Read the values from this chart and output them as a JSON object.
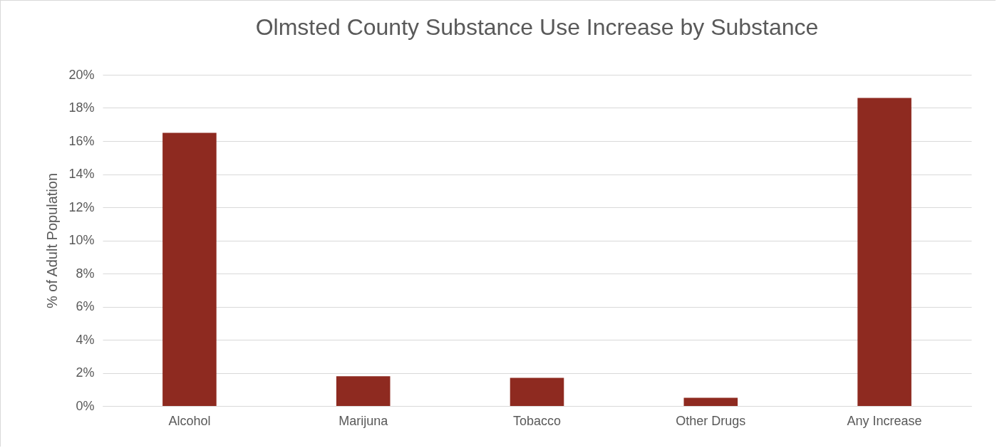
{
  "chart_data": {
    "type": "bar",
    "title": "Olmsted County Substance Use Increase by Substance",
    "ylabel": "% of Adult Population",
    "categories": [
      "Alcohol",
      "Marijuna",
      "Tobacco",
      "Other Drugs",
      "Any Increase"
    ],
    "values": [
      16.5,
      1.8,
      1.7,
      0.5,
      18.6
    ],
    "color": "#8e2a20",
    "ylim": [
      0,
      20
    ],
    "yticks": [
      {
        "value": 0,
        "label": "0%"
      },
      {
        "value": 2,
        "label": "2%"
      },
      {
        "value": 4,
        "label": "4%"
      },
      {
        "value": 6,
        "label": "6%"
      },
      {
        "value": 8,
        "label": "8%"
      },
      {
        "value": 10,
        "label": "10%"
      },
      {
        "value": 12,
        "label": "12%"
      },
      {
        "value": 14,
        "label": "14%"
      },
      {
        "value": 16,
        "label": "16%"
      },
      {
        "value": 18,
        "label": "18%"
      },
      {
        "value": 20,
        "label": "20%"
      }
    ],
    "grid": "y"
  }
}
